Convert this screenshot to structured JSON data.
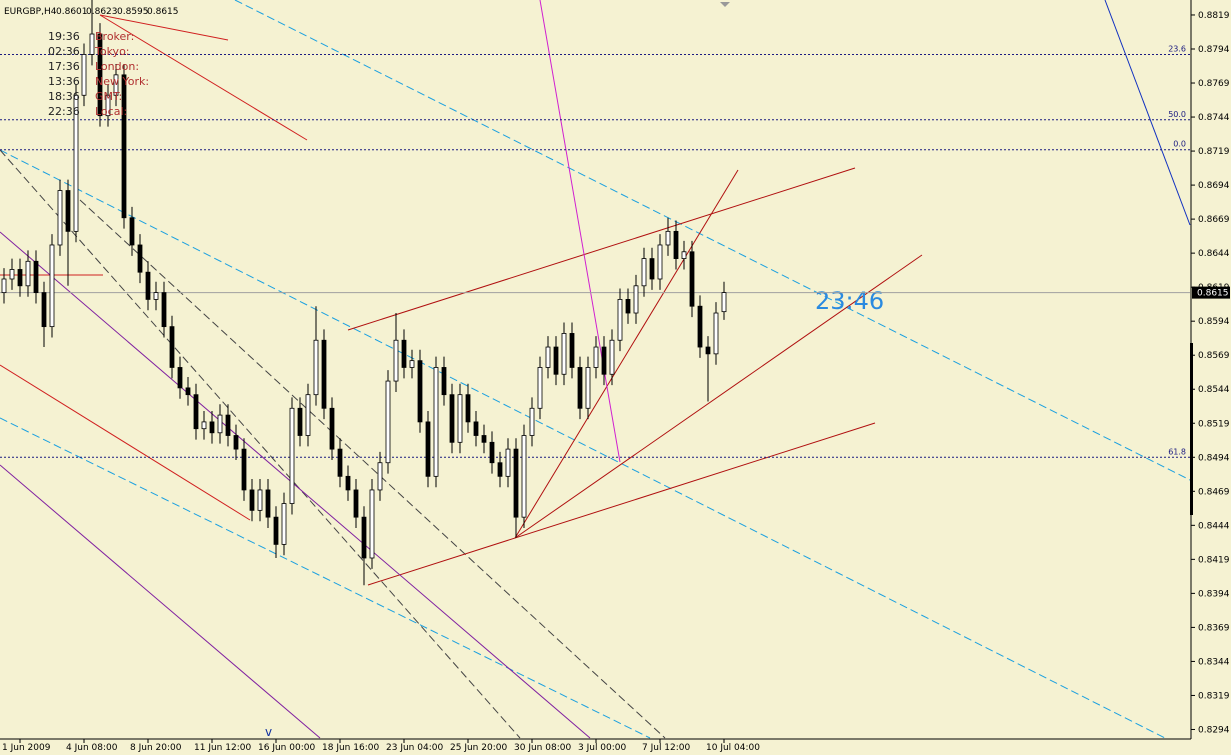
{
  "chart_data": {
    "type": "candlestick",
    "title": "EURGBP,H4",
    "categories": [
      null,
      null,
      "1 Jun 2009",
      null,
      null,
      null,
      null,
      null,
      null,
      null,
      "4 Jun 08:00",
      null,
      null,
      null,
      null,
      null,
      null,
      null,
      "8 Jun 20:00",
      null,
      null,
      null,
      null,
      null,
      null,
      null,
      "11 Jun 12:00",
      null,
      null,
      null,
      null,
      null,
      null,
      null,
      "16 Jun 00:00",
      null,
      null,
      null,
      null,
      null,
      null,
      null,
      "18 Jun 16:00",
      null,
      null,
      null,
      null,
      null,
      null,
      null,
      "23 Jun 04:00",
      null,
      null,
      null,
      null,
      null,
      null,
      null,
      "25 Jun 20:00",
      null,
      null,
      null,
      null,
      null,
      null,
      null,
      "30 Jun 08:00",
      null,
      null,
      null,
      null,
      null,
      null,
      null,
      "3 Jul 00:00",
      null,
      null,
      null,
      null,
      null,
      null,
      null,
      "7 Jul 12:00",
      null,
      null,
      null,
      null,
      null,
      null,
      null,
      "10 Jul 04:00"
    ],
    "open": [
      0.8615,
      0.8625,
      0.8632,
      0.862,
      0.8638,
      0.8615,
      0.859,
      0.865,
      0.869,
      0.866,
      0.876,
      0.879,
      0.8805,
      0.8745,
      0.876,
      0.8775,
      0.867,
      0.865,
      0.863,
      0.861,
      0.8615,
      0.859,
      0.856,
      0.8545,
      0.854,
      0.8515,
      0.852,
      0.8512,
      0.8525,
      0.851,
      0.85,
      0.847,
      0.8455,
      0.847,
      0.845,
      0.843,
      0.846,
      0.853,
      0.851,
      0.854,
      0.858,
      0.853,
      0.85,
      0.848,
      0.847,
      0.845,
      0.842,
      0.847,
      0.849,
      0.855,
      0.858,
      0.856,
      0.8565,
      0.852,
      0.848,
      0.856,
      0.854,
      0.8505,
      0.854,
      0.852,
      0.851,
      0.8505,
      0.849,
      0.848,
      0.85,
      0.845,
      0.851,
      0.853,
      0.856,
      0.8575,
      0.8555,
      0.8585,
      0.856,
      0.853,
      0.856,
      0.8575,
      0.8555,
      0.858,
      0.861,
      0.86,
      0.862,
      0.864,
      0.8625,
      0.865,
      0.866,
      0.864,
      0.8645,
      0.8605,
      0.8575,
      0.857,
      0.8601
    ],
    "high": [
      0.8633,
      0.864,
      0.864,
      0.8646,
      0.8646,
      0.8623,
      0.8658,
      0.8698,
      0.8698,
      0.8768,
      0.8798,
      0.883,
      0.8813,
      0.8768,
      0.8783,
      0.8783,
      0.8678,
      0.8658,
      0.8638,
      0.8623,
      0.8623,
      0.8598,
      0.8568,
      0.8553,
      0.8548,
      0.8528,
      0.8528,
      0.8533,
      0.8533,
      0.8518,
      0.8508,
      0.8478,
      0.8478,
      0.8478,
      0.8458,
      0.8468,
      0.8538,
      0.8538,
      0.8548,
      0.8605,
      0.8588,
      0.8538,
      0.8508,
      0.8488,
      0.8478,
      0.8458,
      0.8478,
      0.8498,
      0.8558,
      0.86,
      0.8588,
      0.8573,
      0.8573,
      0.8528,
      0.8568,
      0.8568,
      0.8548,
      0.8548,
      0.8548,
      0.8528,
      0.8518,
      0.8513,
      0.8498,
      0.8508,
      0.8508,
      0.8518,
      0.8538,
      0.8568,
      0.8583,
      0.8583,
      0.8593,
      0.8593,
      0.8568,
      0.8568,
      0.8583,
      0.8583,
      0.8588,
      0.8618,
      0.8618,
      0.8628,
      0.8648,
      0.8648,
      0.8658,
      0.867,
      0.8668,
      0.8653,
      0.8653,
      0.8613,
      0.8583,
      0.8608,
      0.8623
    ],
    "low": [
      0.8607,
      0.8617,
      0.8612,
      0.8612,
      0.8607,
      0.8575,
      0.8582,
      0.8642,
      0.862,
      0.8652,
      0.8752,
      0.8782,
      0.8737,
      0.8737,
      0.8752,
      0.8662,
      0.8642,
      0.8622,
      0.8602,
      0.8602,
      0.8582,
      0.8552,
      0.8537,
      0.8532,
      0.8507,
      0.8507,
      0.8504,
      0.8504,
      0.8502,
      0.8492,
      0.8462,
      0.8447,
      0.8447,
      0.8442,
      0.842,
      0.8422,
      0.8452,
      0.8502,
      0.8502,
      0.8532,
      0.8522,
      0.8492,
      0.8472,
      0.8462,
      0.8442,
      0.84,
      0.8412,
      0.8462,
      0.8482,
      0.8542,
      0.8552,
      0.8552,
      0.8512,
      0.8472,
      0.8472,
      0.8532,
      0.8497,
      0.8497,
      0.8512,
      0.8502,
      0.8497,
      0.8482,
      0.8472,
      0.8472,
      0.8435,
      0.8442,
      0.8502,
      0.8522,
      0.8552,
      0.8547,
      0.8547,
      0.8552,
      0.8522,
      0.8522,
      0.8552,
      0.8547,
      0.8547,
      0.8572,
      0.8592,
      0.8592,
      0.8612,
      0.8617,
      0.8617,
      0.8642,
      0.8632,
      0.8632,
      0.8597,
      0.8567,
      0.8535,
      0.8562,
      0.8595
    ],
    "close": [
      0.8625,
      0.8632,
      0.862,
      0.8638,
      0.8615,
      0.859,
      0.865,
      0.869,
      0.866,
      0.876,
      0.879,
      0.8805,
      0.8745,
      0.876,
      0.8775,
      0.867,
      0.865,
      0.863,
      0.861,
      0.8615,
      0.859,
      0.856,
      0.8545,
      0.854,
      0.8515,
      0.852,
      0.8512,
      0.8525,
      0.851,
      0.85,
      0.847,
      0.8455,
      0.847,
      0.845,
      0.843,
      0.846,
      0.853,
      0.851,
      0.854,
      0.858,
      0.853,
      0.85,
      0.848,
      0.847,
      0.845,
      0.842,
      0.847,
      0.849,
      0.855,
      0.858,
      0.856,
      0.8565,
      0.852,
      0.848,
      0.856,
      0.854,
      0.8505,
      0.854,
      0.852,
      0.851,
      0.8505,
      0.849,
      0.848,
      0.85,
      0.845,
      0.851,
      0.853,
      0.856,
      0.8575,
      0.8555,
      0.8585,
      0.856,
      0.853,
      0.856,
      0.8575,
      0.8555,
      0.858,
      0.861,
      0.86,
      0.862,
      0.864,
      0.8625,
      0.865,
      0.866,
      0.864,
      0.8645,
      0.8605,
      0.8575,
      0.857,
      0.86,
      0.8615
    ],
    "ylim": [
      0.8287,
      0.883
    ],
    "yticks": [
      0.8819,
      0.8794,
      0.8769,
      0.8744,
      0.8719,
      0.8694,
      0.8669,
      0.8644,
      0.8619,
      0.8594,
      0.8569,
      0.8544,
      0.8519,
      0.8494,
      0.8469,
      0.8444,
      0.8419,
      0.8394,
      0.8369,
      0.8344,
      0.8319,
      0.8294
    ],
    "fib_levels": [
      {
        "label": "23.6",
        "value": 0.879
      },
      {
        "label": "50.0",
        "value": 0.8742
      },
      {
        "label": "0.0",
        "value": 0.872
      },
      {
        "label": "61.8",
        "value": 0.8494
      }
    ],
    "clocks": [
      {
        "time": "19:36",
        "label": "Broker:"
      },
      {
        "time": "02:36",
        "label": "Tokyo:"
      },
      {
        "time": "17:36",
        "label": "London:"
      },
      {
        "time": "13:36",
        "label": "New York:"
      },
      {
        "time": "18:36",
        "label": "GMT:"
      },
      {
        "time": "22:36",
        "label": "Local:"
      }
    ],
    "countdown": "23:46",
    "marker": "v"
  }
}
